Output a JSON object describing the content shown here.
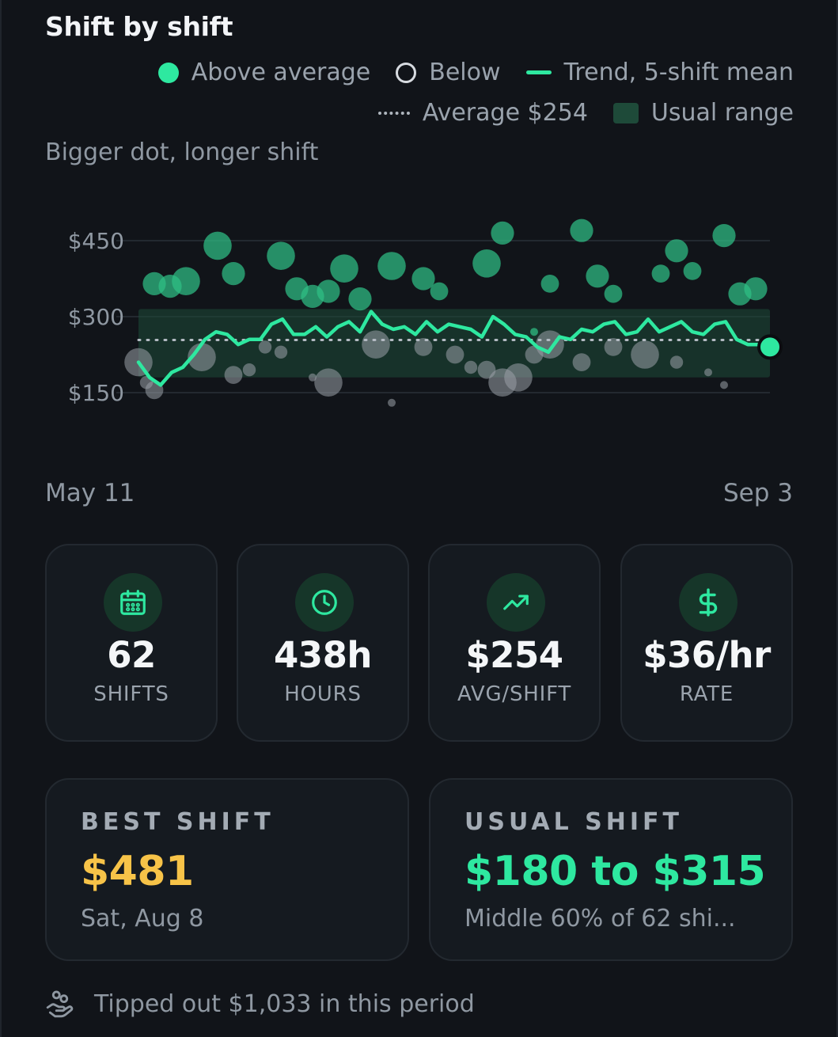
{
  "title": "Shift by shift",
  "legend": {
    "above": "Above average",
    "below": "Below",
    "trend": "Trend, 5-shift mean",
    "average": "Average $254",
    "range": "Usual range"
  },
  "subnote": "Bigger dot, longer shift",
  "colors": {
    "accent": "#2ee8a0",
    "above_dot": "#2fbf85",
    "below_dot": "#9aa1a8",
    "band": "#1e4a39",
    "best": "#f7c348",
    "background": "#111419"
  },
  "chart_data": {
    "type": "scatter",
    "y_ticks": [
      "$450",
      "$300",
      "$150"
    ],
    "y_tick_values": [
      450,
      300,
      150
    ],
    "ylim": [
      70,
      540
    ],
    "x_labels": [
      "May 11",
      "Sep 3"
    ],
    "average": 254,
    "usual_range": [
      180,
      315
    ],
    "grid": true,
    "series": [
      {
        "name": "Above average",
        "kind": "points",
        "points": [
          {
            "x": 1,
            "y": 365,
            "hours": 7
          },
          {
            "x": 2,
            "y": 360,
            "hours": 7
          },
          {
            "x": 3,
            "y": 370,
            "hours": 8
          },
          {
            "x": 5,
            "y": 440,
            "hours": 8
          },
          {
            "x": 6,
            "y": 385,
            "hours": 7
          },
          {
            "x": 9,
            "y": 420,
            "hours": 8
          },
          {
            "x": 10,
            "y": 355,
            "hours": 7
          },
          {
            "x": 11,
            "y": 340,
            "hours": 7
          },
          {
            "x": 12,
            "y": 350,
            "hours": 7
          },
          {
            "x": 13,
            "y": 395,
            "hours": 8
          },
          {
            "x": 14,
            "y": 335,
            "hours": 7
          },
          {
            "x": 16,
            "y": 400,
            "hours": 8
          },
          {
            "x": 18,
            "y": 375,
            "hours": 7
          },
          {
            "x": 19,
            "y": 350,
            "hours": 6
          },
          {
            "x": 22,
            "y": 405,
            "hours": 8
          },
          {
            "x": 23,
            "y": 465,
            "hours": 7
          },
          {
            "x": 25,
            "y": 270,
            "hours": 4
          },
          {
            "x": 26,
            "y": 365,
            "hours": 6
          },
          {
            "x": 28,
            "y": 470,
            "hours": 7
          },
          {
            "x": 29,
            "y": 380,
            "hours": 7
          },
          {
            "x": 30,
            "y": 345,
            "hours": 6
          },
          {
            "x": 33,
            "y": 385,
            "hours": 6
          },
          {
            "x": 34,
            "y": 430,
            "hours": 7
          },
          {
            "x": 35,
            "y": 390,
            "hours": 6
          },
          {
            "x": 37,
            "y": 460,
            "hours": 7
          },
          {
            "x": 38,
            "y": 345,
            "hours": 7
          },
          {
            "x": 39,
            "y": 355,
            "hours": 7
          }
        ]
      },
      {
        "name": "Below",
        "kind": "points",
        "points": [
          {
            "x": 0,
            "y": 210,
            "hours": 8
          },
          {
            "x": 0.5,
            "y": 170,
            "hours": 5
          },
          {
            "x": 1,
            "y": 155,
            "hours": 6
          },
          {
            "x": 4,
            "y": 220,
            "hours": 8
          },
          {
            "x": 6,
            "y": 185,
            "hours": 6
          },
          {
            "x": 7,
            "y": 195,
            "hours": 5
          },
          {
            "x": 8,
            "y": 240,
            "hours": 5
          },
          {
            "x": 9,
            "y": 230,
            "hours": 5
          },
          {
            "x": 11,
            "y": 180,
            "hours": 4
          },
          {
            "x": 12,
            "y": 170,
            "hours": 8
          },
          {
            "x": 15,
            "y": 245,
            "hours": 8
          },
          {
            "x": 16,
            "y": 130,
            "hours": 4
          },
          {
            "x": 18,
            "y": 240,
            "hours": 6
          },
          {
            "x": 20,
            "y": 225,
            "hours": 6
          },
          {
            "x": 21,
            "y": 200,
            "hours": 5
          },
          {
            "x": 22,
            "y": 195,
            "hours": 6
          },
          {
            "x": 23,
            "y": 170,
            "hours": 8
          },
          {
            "x": 24,
            "y": 180,
            "hours": 8
          },
          {
            "x": 25,
            "y": 225,
            "hours": 6
          },
          {
            "x": 26,
            "y": 245,
            "hours": 8
          },
          {
            "x": 28,
            "y": 210,
            "hours": 6
          },
          {
            "x": 30,
            "y": 240,
            "hours": 6
          },
          {
            "x": 32,
            "y": 225,
            "hours": 8
          },
          {
            "x": 34,
            "y": 210,
            "hours": 5
          },
          {
            "x": 36,
            "y": 190,
            "hours": 4
          },
          {
            "x": 37,
            "y": 165,
            "hours": 4
          }
        ]
      },
      {
        "name": "Trend, 5-shift mean",
        "kind": "line",
        "x": [
          0,
          0.7,
          1.4,
          2.1,
          2.8,
          3.5,
          4.2,
          4.9,
          5.6,
          6.3,
          7,
          7.7,
          8.4,
          9.1,
          9.8,
          10.5,
          11.2,
          11.9,
          12.6,
          13.3,
          14,
          14.7,
          15.4,
          16.1,
          16.8,
          17.5,
          18.2,
          18.9,
          19.6,
          20.3,
          21,
          21.7,
          22.4,
          23.1,
          23.8,
          24.5,
          25.2,
          25.9,
          26.6,
          27.3,
          28,
          28.7,
          29.4,
          30.1,
          30.8,
          31.5,
          32.2,
          32.9,
          33.6,
          34.3,
          35,
          35.7,
          36.4,
          37.1,
          37.8,
          38.5,
          39.2,
          39.9
        ],
        "y": [
          210,
          180,
          165,
          190,
          200,
          225,
          255,
          270,
          265,
          245,
          255,
          255,
          285,
          295,
          265,
          265,
          280,
          260,
          280,
          290,
          270,
          310,
          285,
          275,
          280,
          265,
          290,
          270,
          285,
          280,
          275,
          260,
          300,
          285,
          265,
          260,
          240,
          230,
          260,
          255,
          275,
          270,
          285,
          290,
          265,
          270,
          295,
          270,
          280,
          290,
          270,
          265,
          285,
          290,
          255,
          245,
          245,
          255
        ]
      }
    ],
    "highlight": {
      "x": 39.9,
      "y": 240
    }
  },
  "stats": [
    {
      "icon": "calendar-icon",
      "value": "62",
      "label": "SHIFTS"
    },
    {
      "icon": "clock-icon",
      "value": "438h",
      "label": "HOURS"
    },
    {
      "icon": "trending-up-icon",
      "value": "$254",
      "label": "AVG/SHIFT"
    },
    {
      "icon": "dollar-icon",
      "value": "$36/hr",
      "label": "RATE"
    }
  ],
  "best": {
    "kicker": "BEST SHIFT",
    "value": "$481",
    "sub": "Sat, Aug 8"
  },
  "usual": {
    "kicker": "USUAL SHIFT",
    "value": "$180 to $315",
    "sub": "Middle 60% of 62 shi..."
  },
  "footer": "Tipped out $1,033 in this period"
}
